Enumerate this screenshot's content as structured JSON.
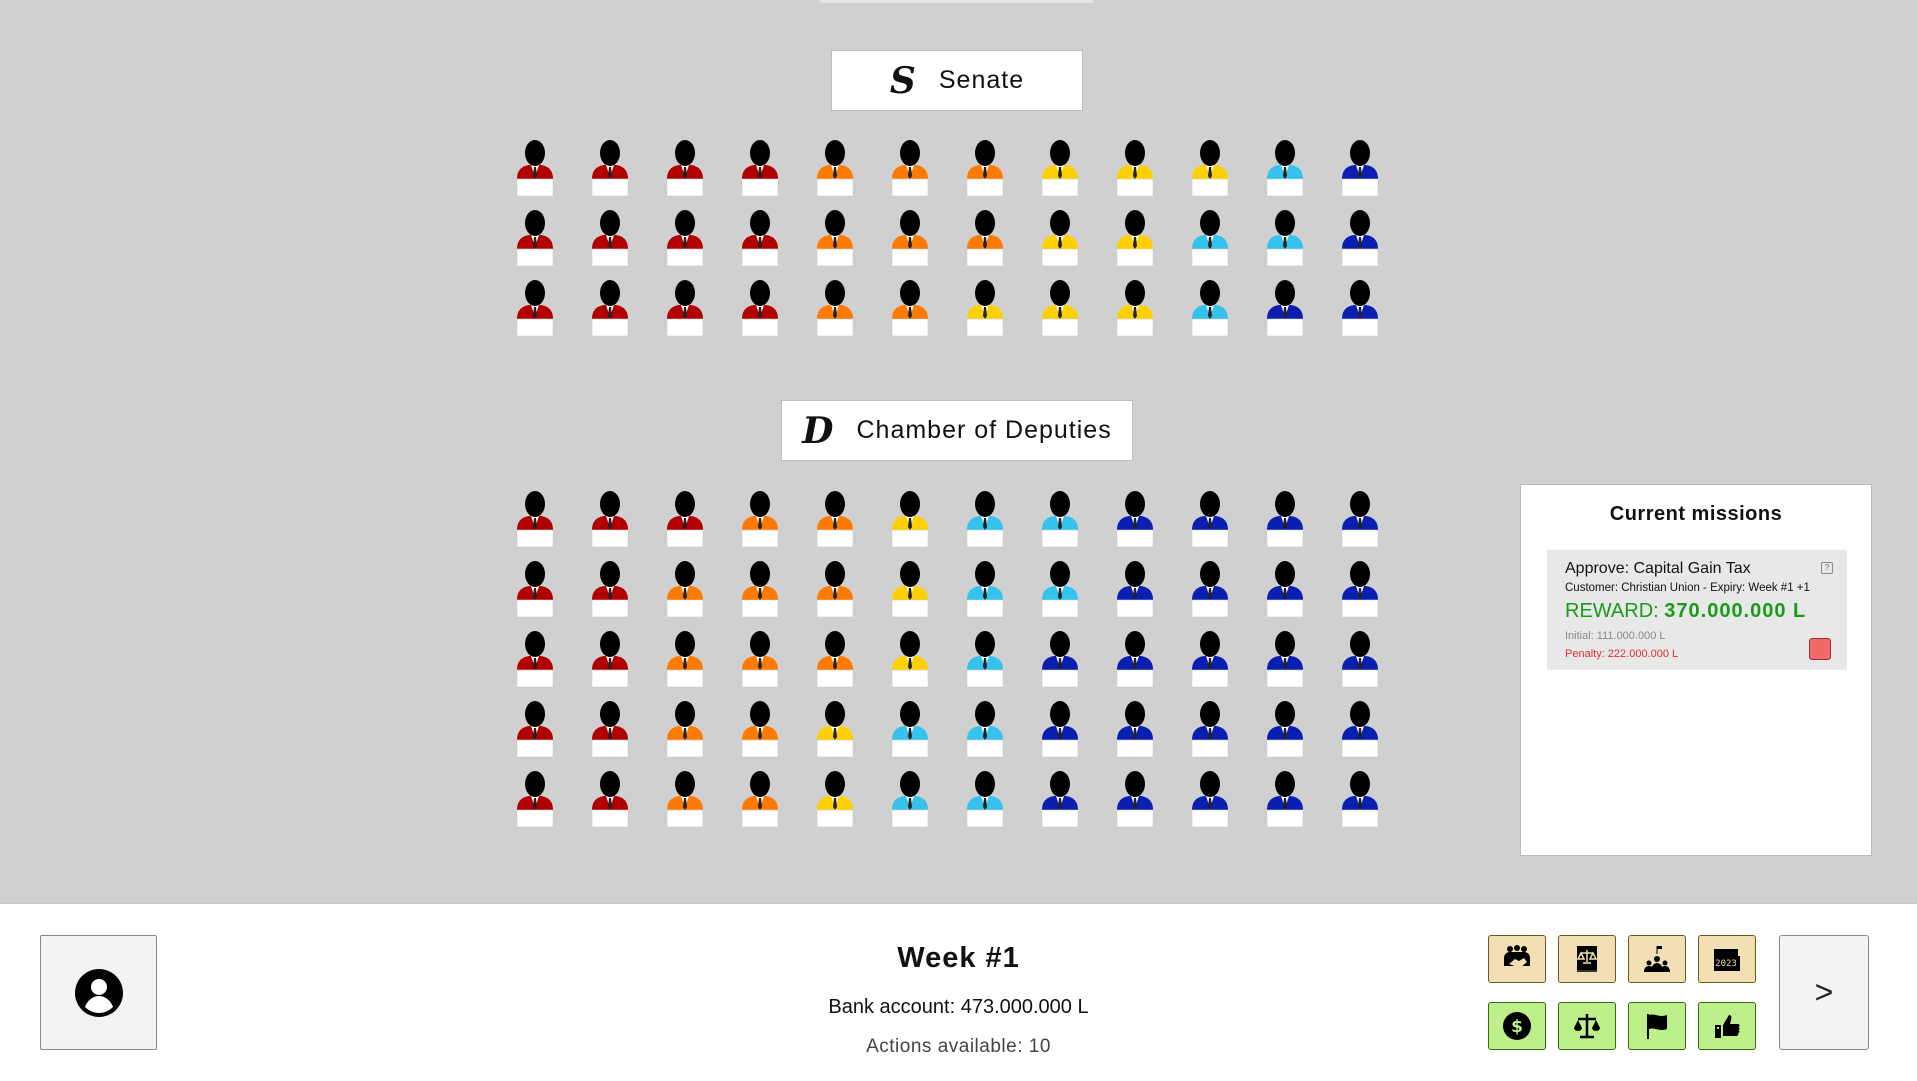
{
  "parties": {
    "R": "#b00000",
    "O": "#ff7a00",
    "Y": "#ffd000",
    "C": "#35c3ee",
    "B": "#0a1fb0"
  },
  "senate": {
    "glyph": "S",
    "title": "Senate",
    "rows": [
      "RRRROOOYYYCB",
      "RRRROOOYYCCB",
      "RRRROOYYYCBB"
    ]
  },
  "deputies": {
    "glyph": "D",
    "title": "Chamber of Deputies",
    "rows": [
      "RRROOYCCBBBB",
      "RROOOYCCBBBB",
      "RROOOYCBBBBB",
      "RROOYCCBBBBB",
      "RROOYCCBBBBB"
    ]
  },
  "missions": {
    "title": "Current missions",
    "items": [
      {
        "title": "Approve: Capital Gain Tax",
        "subtitle": "Customer: Christian Union - Expiry: Week #1 +1",
        "reward_label": "REWARD:",
        "reward_value": "370.000.000 L",
        "initial": "Initial: 111.000.000 L",
        "penalty": "Penalty: 222.000.000 L",
        "help_icon": "?"
      }
    ]
  },
  "footer": {
    "week": "Week #1",
    "bank": "Bank account: 473.000.000 L",
    "actions": "Actions available: 10",
    "next_label": ">",
    "top_icons": [
      "handshake-group-icon",
      "law-book-icon",
      "rally-crowd-icon",
      "calendar-2023-icon"
    ],
    "calendar_year": "2023",
    "bottom_icons": [
      "dollar-icon",
      "scales-icon",
      "flag-icon",
      "thumbs-up-icon"
    ]
  }
}
